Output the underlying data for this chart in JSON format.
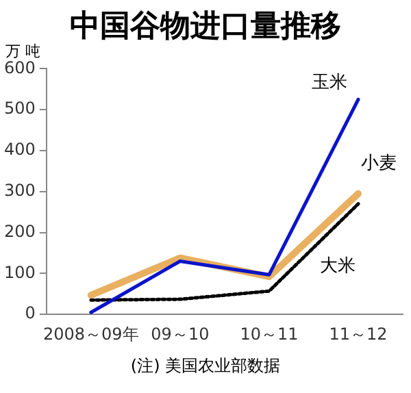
{
  "chart_data": {
    "type": "line",
    "title": "中国谷物进口量推移",
    "ylabel": "万 吨",
    "categories": [
      "2008～09年",
      "09～10",
      "10～11",
      "11～12"
    ],
    "series": [
      {
        "name": "玉米",
        "color": "#0a14c8",
        "values": [
          5,
          130,
          97,
          525
        ],
        "line_style": "solid"
      },
      {
        "name": "小麦",
        "color": "#e8b060",
        "values": [
          47,
          138,
          92,
          295
        ],
        "line_style": "solid"
      },
      {
        "name": "大米",
        "color": "#000000",
        "values": [
          35,
          37,
          57,
          270
        ],
        "line_style": "dotted"
      }
    ],
    "ylim": [
      0,
      600
    ],
    "yticks": [
      0,
      100,
      200,
      300,
      400,
      500,
      600
    ],
    "grid": false,
    "legend": false,
    "marker": "none",
    "annotations": [
      "(注) 美国农业部数据"
    ]
  }
}
